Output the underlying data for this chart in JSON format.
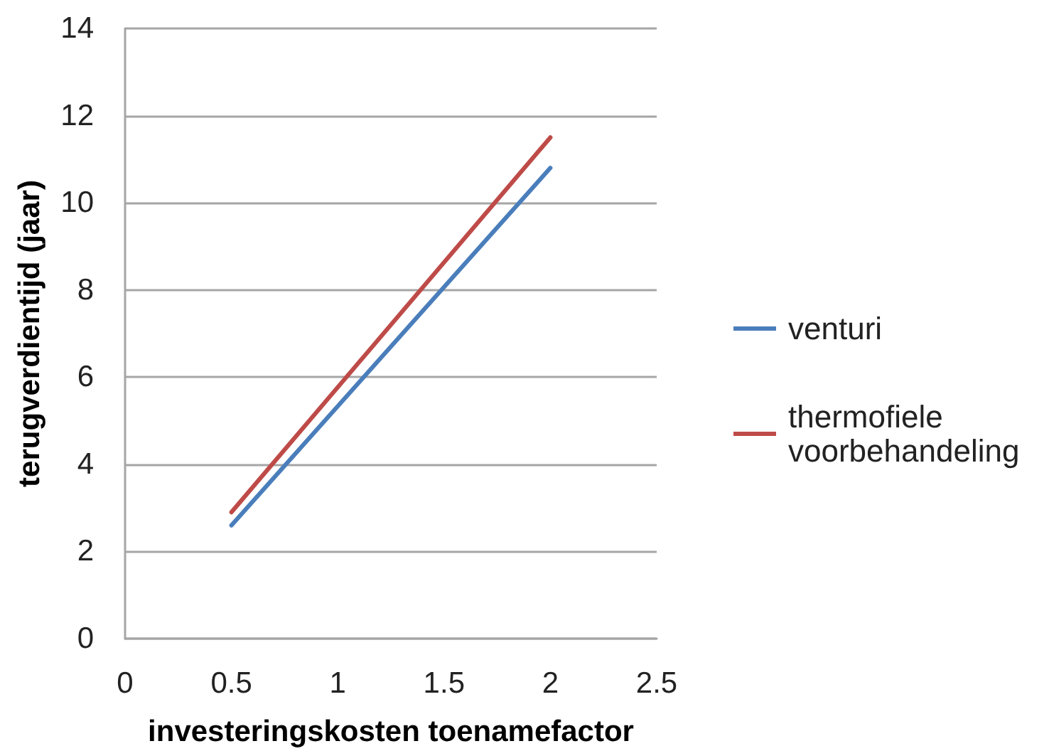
{
  "chart_data": {
    "type": "line",
    "xlabel": "investeringskosten toenamefactor",
    "ylabel": "terugverdientijd (jaar)",
    "x": [
      0.5,
      2
    ],
    "series": [
      {
        "name": "venturi",
        "color": "#4a7ebb",
        "values": [
          2.6,
          10.8
        ]
      },
      {
        "name": "thermofiele voorbehandeling",
        "color": "#be4b48",
        "values": [
          2.9,
          11.5
        ]
      }
    ],
    "xlim": [
      0,
      2.5
    ],
    "xticks": [
      0,
      0.5,
      1,
      1.5,
      2,
      2.5
    ],
    "ylim": [
      0,
      14
    ],
    "yticks": [
      0,
      2,
      4,
      6,
      8,
      10,
      12,
      14
    ],
    "grid": "y",
    "legend": "right",
    "marker": "none",
    "line_style": "solid"
  }
}
